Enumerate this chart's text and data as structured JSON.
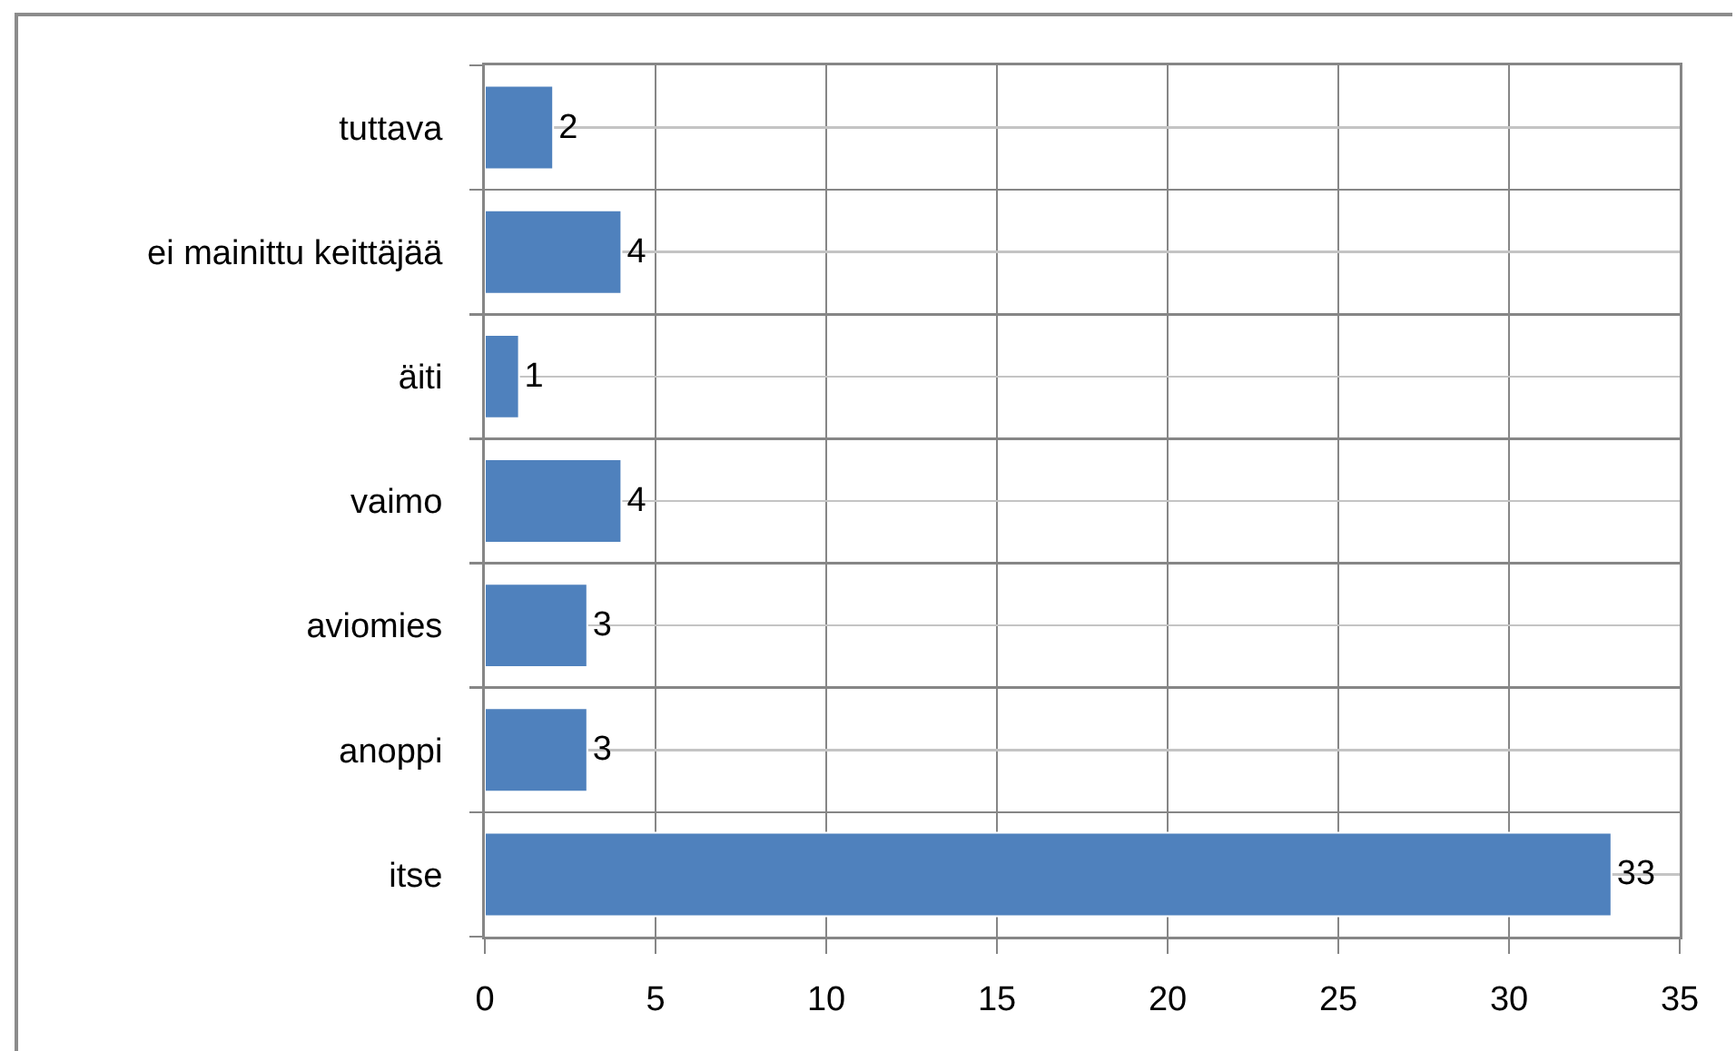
{
  "chart_data": {
    "type": "bar",
    "orientation": "horizontal",
    "categories": [
      "tuttava",
      "ei mainittu keittäjää",
      "äiti",
      "vaimo",
      "aviomies",
      "anoppi",
      "itse"
    ],
    "values": [
      2,
      4,
      1,
      4,
      3,
      3,
      33
    ],
    "color": "#4f81bd",
    "xlim": [
      0,
      35
    ],
    "xticks": [
      0,
      5,
      10,
      15,
      20,
      25,
      30,
      35
    ],
    "grid": true,
    "data_labels": true
  }
}
